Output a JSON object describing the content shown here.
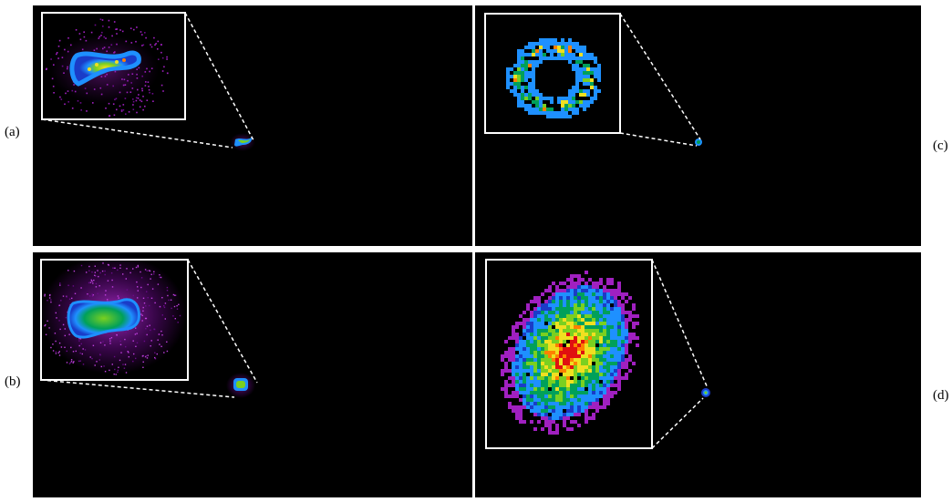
{
  "labels": {
    "a": "(a)",
    "b": "(b)",
    "c": "(c)",
    "d": "(d)"
  },
  "panels": [
    {
      "id": "a",
      "colormap": "rainbow"
    },
    {
      "id": "b",
      "colormap": "rainbow"
    },
    {
      "id": "c",
      "colormap": "rainbow"
    },
    {
      "id": "d",
      "colormap": "rainbow"
    }
  ],
  "colors": {
    "background": "#000000",
    "inset_border": "#ffffff",
    "zoom_line": "#ffffff",
    "colormap": [
      "#6a0a8a",
      "#a020c0",
      "#1a3cc8",
      "#1e90ff",
      "#00a05a",
      "#7ad020",
      "#f0e020",
      "#ff8000",
      "#e01010"
    ]
  }
}
